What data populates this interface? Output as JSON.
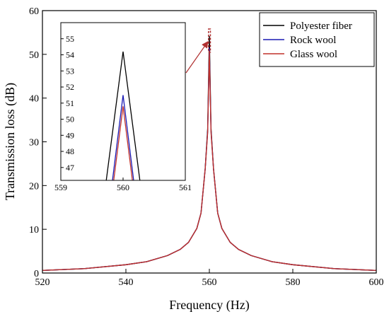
{
  "chart_data": [
    {
      "type": "line",
      "xlabel": "Frequency (Hz)",
      "ylabel": "Transmission loss (dB)",
      "xlim": [
        520,
        600
      ],
      "ylim": [
        0,
        60
      ],
      "xticks": [
        "520",
        "540",
        "560",
        "580",
        "600"
      ],
      "yticks": [
        "0",
        "10",
        "20",
        "30",
        "40",
        "50",
        "60"
      ],
      "legend": "top-right",
      "grid": false,
      "series": [
        {
          "name": "Polyester fiber",
          "color": "#000000",
          "x": [
            520,
            530,
            540,
            545,
            550,
            553,
            555,
            557,
            558,
            559,
            559.6,
            560,
            560.4,
            561,
            562,
            563,
            565,
            567,
            570,
            575,
            580,
            590,
            600
          ],
          "y": [
            0.6,
            1.0,
            1.9,
            2.6,
            4.0,
            5.4,
            7.0,
            10.2,
            13.7,
            23.8,
            33.0,
            54.2,
            33.0,
            23.8,
            13.7,
            10.2,
            7.0,
            5.4,
            4.0,
            2.6,
            1.9,
            1.0,
            0.6
          ]
        },
        {
          "name": "Rock wool",
          "color": "#1a1ab4",
          "x": [
            520,
            530,
            540,
            545,
            550,
            553,
            555,
            557,
            558,
            559,
            559.6,
            560,
            560.4,
            561,
            562,
            563,
            565,
            567,
            570,
            575,
            580,
            590,
            600
          ],
          "y": [
            0.6,
            1.0,
            1.9,
            2.6,
            4.0,
            5.4,
            7.0,
            10.2,
            13.7,
            23.8,
            32.5,
            51.5,
            32.5,
            23.8,
            13.7,
            10.2,
            7.0,
            5.4,
            4.0,
            2.6,
            1.9,
            1.0,
            0.6
          ]
        },
        {
          "name": "Glass wool",
          "color": "#c0302a",
          "x": [
            520,
            530,
            540,
            545,
            550,
            553,
            555,
            557,
            558,
            559,
            559.6,
            560,
            560.4,
            561,
            562,
            563,
            565,
            567,
            570,
            575,
            580,
            590,
            600
          ],
          "y": [
            0.6,
            1.0,
            1.9,
            2.6,
            4.0,
            5.4,
            7.0,
            10.2,
            13.7,
            23.8,
            32.2,
            50.8,
            32.2,
            23.8,
            13.7,
            10.2,
            7.0,
            5.4,
            4.0,
            2.6,
            1.9,
            1.0,
            0.6
          ]
        }
      ]
    },
    {
      "type": "line",
      "role": "inset",
      "xlim": [
        559,
        561
      ],
      "ylim": [
        46.2,
        56
      ],
      "xticks": [
        "559",
        "560",
        "561"
      ],
      "yticks": [
        "47",
        "48",
        "49",
        "50",
        "51",
        "52",
        "53",
        "54",
        "55"
      ],
      "zoom_region": {
        "x": [
          559.8,
          560.25
        ],
        "y": [
          50.5,
          55.8
        ]
      },
      "series": [
        {
          "name": "Polyester fiber",
          "color": "#000000",
          "x": [
            559.73,
            560,
            560.27
          ],
          "y": [
            46.2,
            54.2,
            46.2
          ]
        },
        {
          "name": "Rock wool",
          "color": "#1a1ab4",
          "x": [
            559.83,
            560,
            560.17
          ],
          "y": [
            46.2,
            51.5,
            46.2
          ]
        },
        {
          "name": "Glass wool",
          "color": "#c0302a",
          "x": [
            559.85,
            560,
            560.15
          ],
          "y": [
            46.2,
            50.8,
            46.2
          ]
        }
      ]
    }
  ]
}
